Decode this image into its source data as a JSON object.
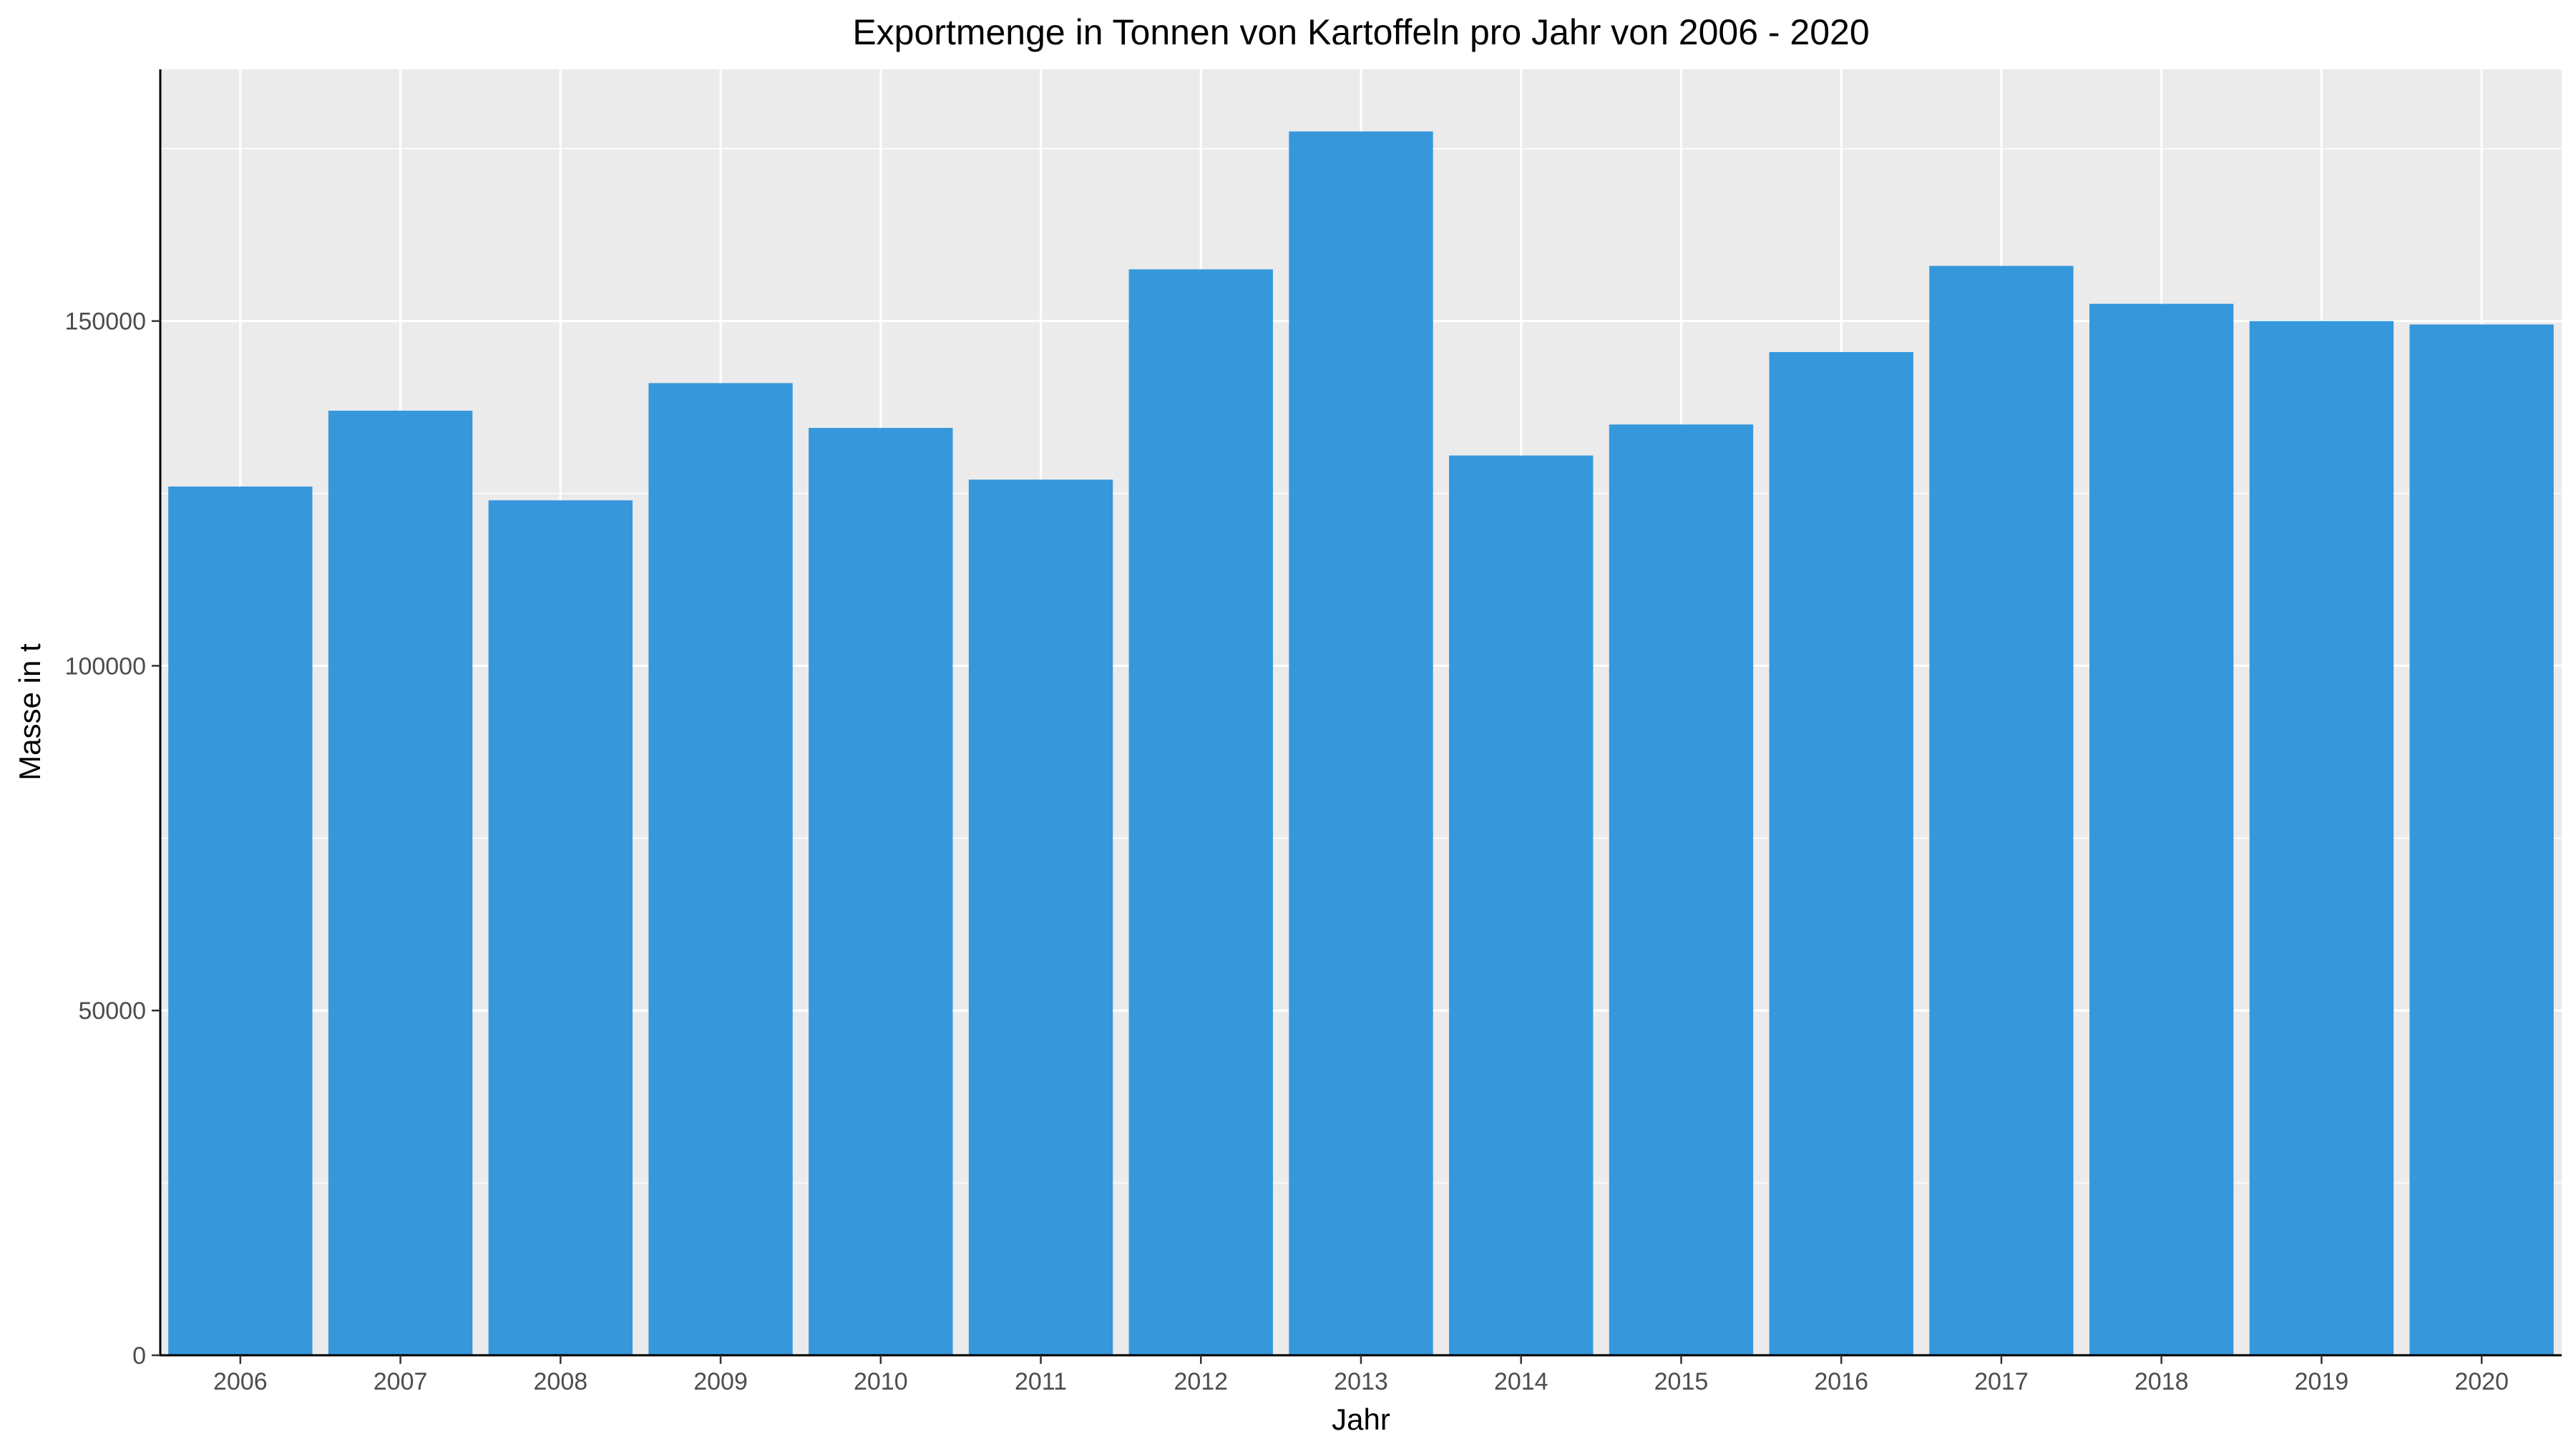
{
  "chart_data": {
    "type": "bar",
    "title": "Exportmenge in Tonnen von Kartoffeln pro Jahr von 2006 - 2020",
    "xlabel": "Jahr",
    "ylabel": "Masse in t",
    "categories": [
      "2006",
      "2007",
      "2008",
      "2009",
      "2010",
      "2011",
      "2012",
      "2013",
      "2014",
      "2015",
      "2016",
      "2017",
      "2018",
      "2019",
      "2020"
    ],
    "values": [
      126000,
      137000,
      124000,
      141000,
      134500,
      127000,
      157500,
      177500,
      130500,
      135000,
      145500,
      158000,
      152500,
      150000,
      149500
    ],
    "yticks": [
      0,
      50000,
      100000,
      150000
    ],
    "ytick_labels": [
      "0",
      "50000",
      "100000",
      "150000"
    ],
    "ylim": [
      0,
      186500
    ],
    "grid": true,
    "colors": {
      "bar": "#3697db",
      "panel": "#ebebeb",
      "grid": "#ffffff",
      "axis": "#000000"
    }
  }
}
